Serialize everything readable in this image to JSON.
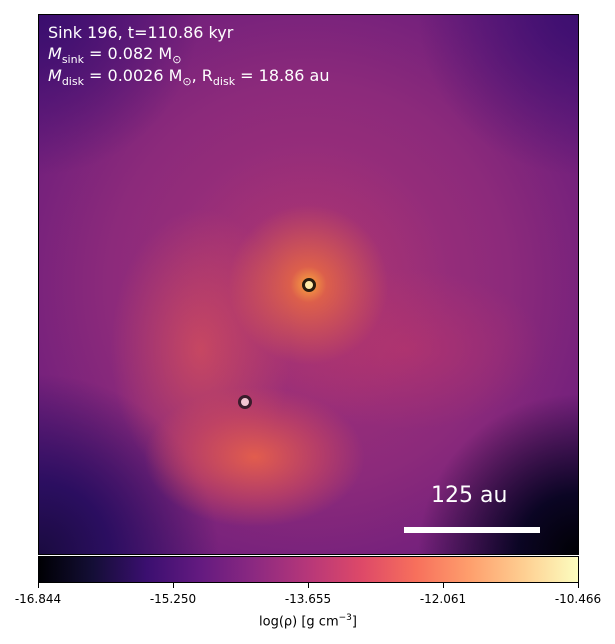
{
  "annotation": {
    "line1": "Sink 196, t=110.86 kyr",
    "line2_prefix": "M",
    "line2_sub": "sink",
    "line2_rest": " = 0.082 M",
    "line2_sun": "⊙",
    "line3_prefix": "M",
    "line3_sub": "disk",
    "line3_mid": " = 0.0026 M",
    "line3_sun": "⊙",
    "line3_sep": ", R",
    "line3_sub2": "disk",
    "line3_rest": " = 18.86 au"
  },
  "scale_bar": {
    "label": "125 au"
  },
  "colorbar": {
    "ticks": [
      "-16.844",
      "-15.250",
      "-13.655",
      "-12.061",
      "-10.466"
    ],
    "label_prefix": "log(ρ) [g cm",
    "label_sup": "−3",
    "label_suffix": "]",
    "colormap": "inferno"
  }
}
